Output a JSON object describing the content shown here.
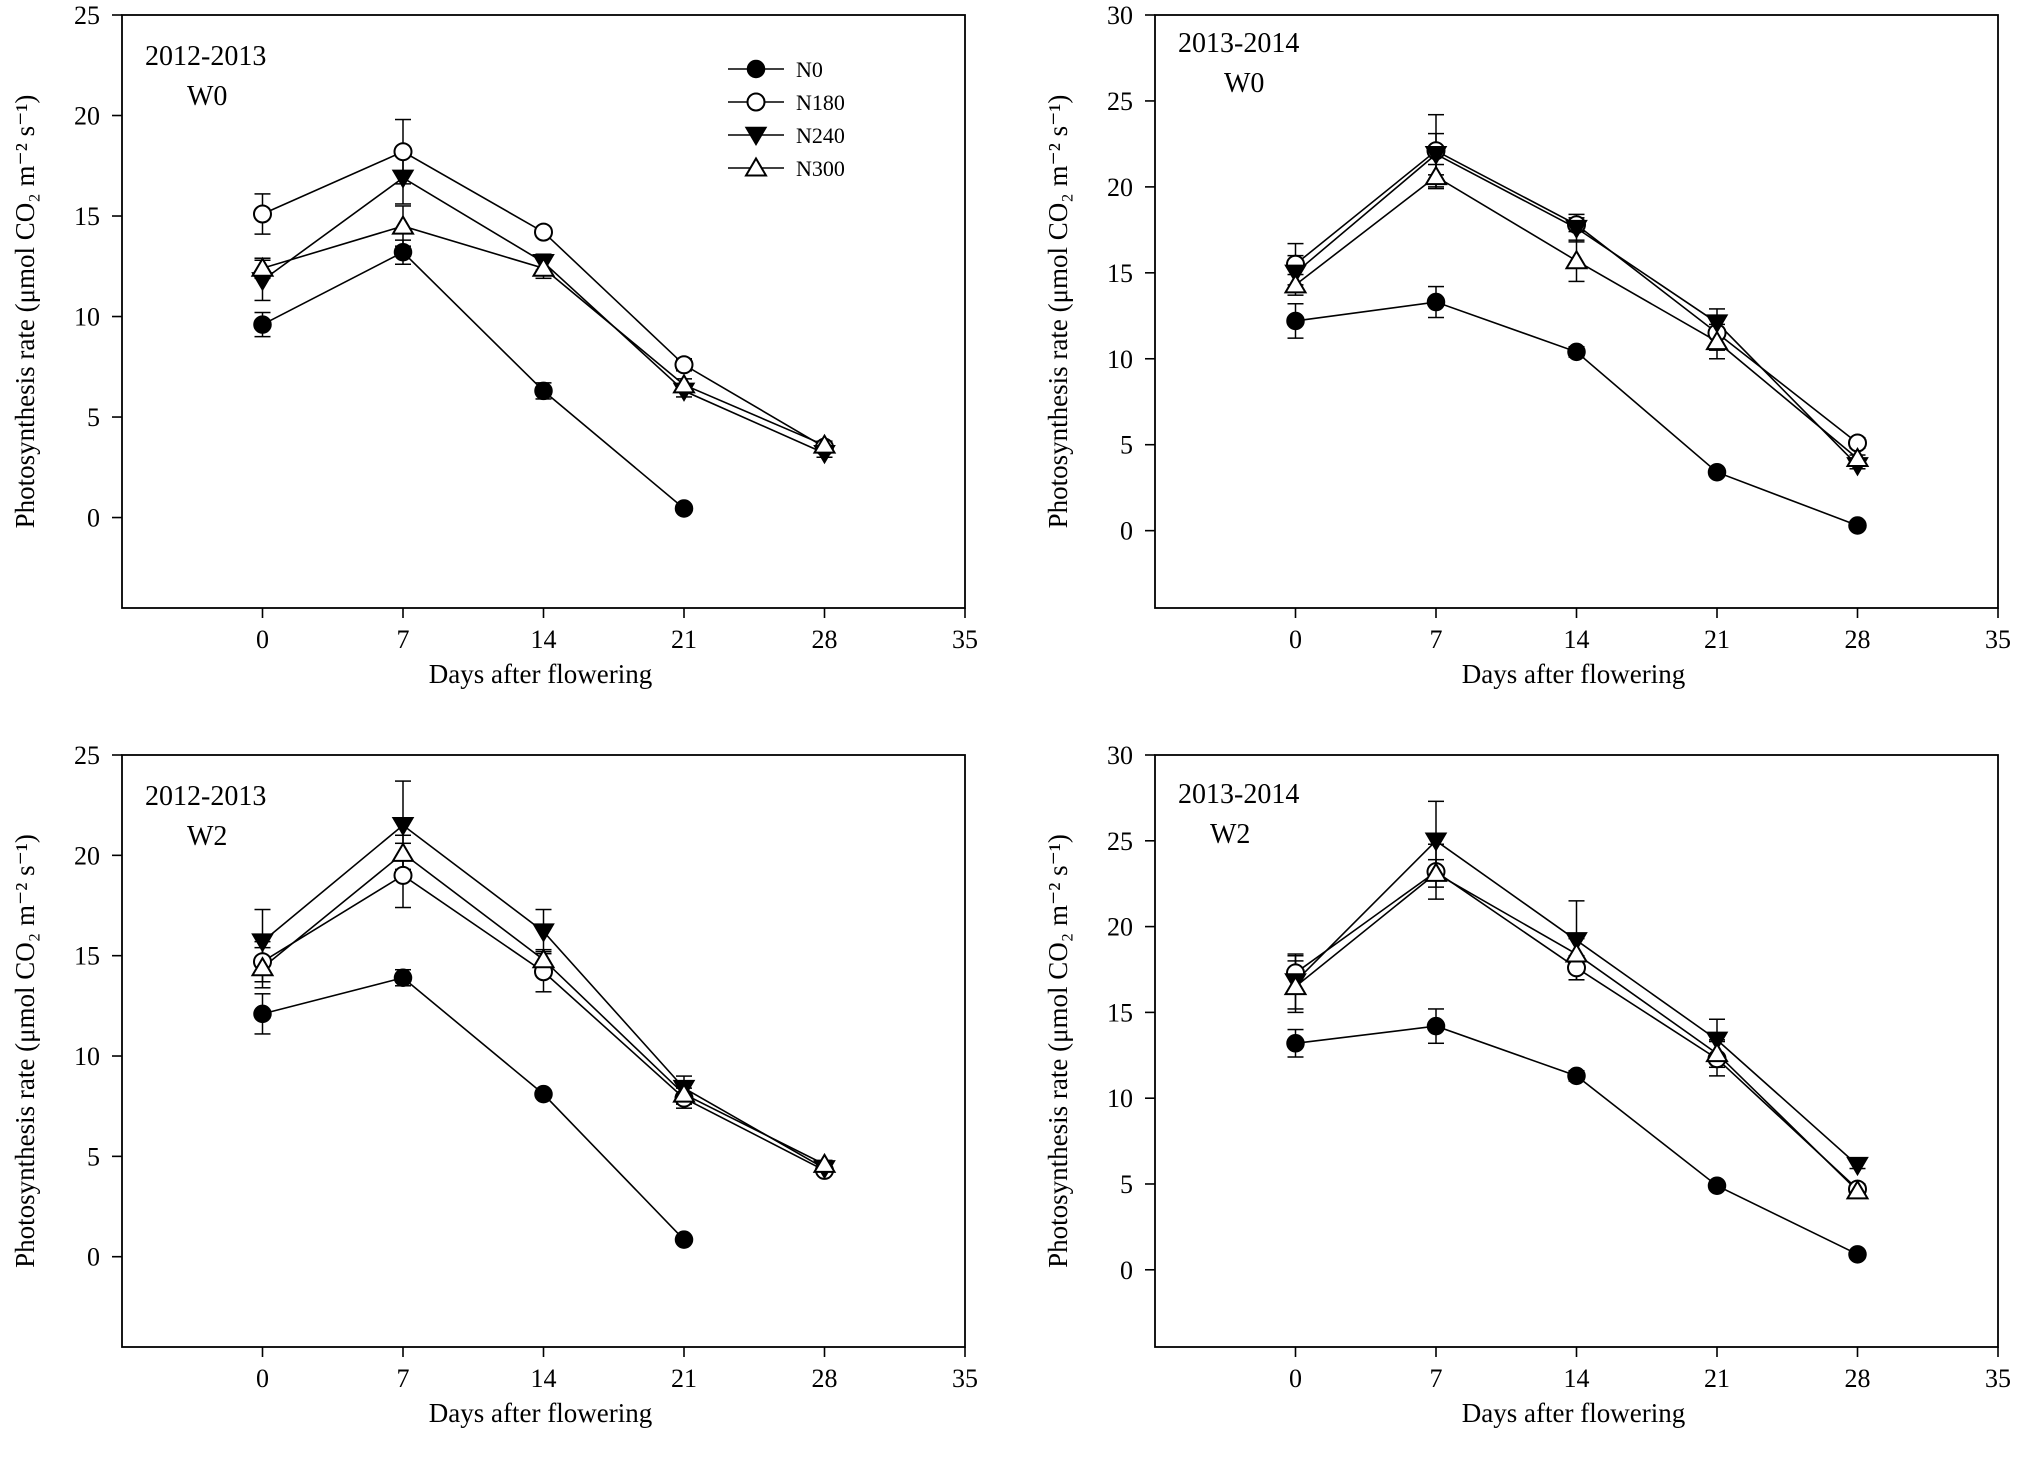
{
  "chart_data": [
    {
      "type": "line",
      "annotation": [
        "2012-2013",
        "W0"
      ],
      "xlabel": "Days after flowering",
      "ylabel": "Photosynthesis rate (μmol CO₂ m⁻² s⁻¹)",
      "ylim": [
        -4.5,
        25
      ],
      "xlim": [
        -7,
        35
      ],
      "yticks": [
        0,
        5,
        10,
        15,
        20,
        25
      ],
      "xticks": [
        0,
        7,
        14,
        21,
        28,
        35
      ],
      "legend_shown": true,
      "legend_position": "top-right",
      "series": [
        {
          "name": "N0",
          "marker": "filled-circle",
          "x": [
            0,
            7,
            14,
            21
          ],
          "values": [
            9.6,
            13.2,
            6.3,
            0.45
          ],
          "err": [
            0.6,
            0.6,
            0.4,
            0
          ]
        },
        {
          "name": "N180",
          "marker": "open-circle",
          "x": [
            0,
            7,
            14,
            21,
            28
          ],
          "values": [
            15.1,
            18.2,
            14.2,
            7.6,
            3.5
          ],
          "err": [
            1.0,
            1.6,
            0.2,
            0.3,
            0.2
          ]
        },
        {
          "name": "N240",
          "marker": "filled-triangle-down",
          "x": [
            0,
            7,
            14,
            21,
            28
          ],
          "values": [
            11.8,
            16.9,
            12.7,
            6.3,
            3.2
          ],
          "err": [
            1.0,
            1.3,
            0.4,
            0.3,
            0.2
          ]
        },
        {
          "name": "N300",
          "marker": "open-triangle-up",
          "x": [
            0,
            7,
            14,
            21,
            28
          ],
          "values": [
            12.4,
            14.5,
            12.4,
            6.6,
            3.6
          ],
          "err": [
            0.5,
            1.0,
            0.5,
            0.3,
            0.2
          ]
        }
      ]
    },
    {
      "type": "line",
      "annotation": [
        "2013-2014",
        "W0"
      ],
      "xlabel": "Days after flowering",
      "ylabel": "Photosynthesis rate (μmol CO₂ m⁻² s⁻¹)",
      "ylim": [
        -4.5,
        30
      ],
      "xlim": [
        -7,
        35
      ],
      "yticks": [
        0,
        5,
        10,
        15,
        20,
        25,
        30
      ],
      "xticks": [
        0,
        7,
        14,
        21,
        28,
        35
      ],
      "legend_shown": false,
      "series": [
        {
          "name": "N0",
          "marker": "filled-circle",
          "x": [
            0,
            7,
            14,
            21,
            28
          ],
          "values": [
            12.2,
            13.3,
            10.4,
            3.4,
            0.3
          ],
          "err": [
            1.0,
            0.9,
            0.3,
            0.2,
            0.1
          ]
        },
        {
          "name": "N180",
          "marker": "open-circle",
          "x": [
            0,
            7,
            14,
            21,
            28
          ],
          "values": [
            15.5,
            22.1,
            17.8,
            11.5,
            5.1
          ],
          "err": [
            1.2,
            2.1,
            0.4,
            1.0,
            0.3
          ]
        },
        {
          "name": "N240",
          "marker": "filled-triangle-down",
          "x": [
            0,
            7,
            14,
            21,
            28
          ],
          "values": [
            15.0,
            21.9,
            17.6,
            12.1,
            3.8
          ],
          "err": [
            1.0,
            1.2,
            0.8,
            0.8,
            0.2
          ]
        },
        {
          "name": "N300",
          "marker": "open-triangle-up",
          "x": [
            0,
            7,
            14,
            21,
            28
          ],
          "values": [
            14.3,
            20.6,
            15.7,
            11.0,
            4.2
          ],
          "err": [
            0.6,
            0.7,
            1.2,
            1.0,
            0.2
          ]
        }
      ]
    },
    {
      "type": "line",
      "annotation": [
        "2012-2013",
        "W2"
      ],
      "xlabel": "Days after flowering",
      "ylabel": "Photosynthesis rate (μmol CO₂ m⁻² s⁻¹)",
      "ylim": [
        -4.5,
        25
      ],
      "xlim": [
        -7,
        35
      ],
      "yticks": [
        0,
        5,
        10,
        15,
        20,
        25
      ],
      "xticks": [
        0,
        7,
        14,
        21,
        28,
        35
      ],
      "legend_shown": false,
      "series": [
        {
          "name": "N0",
          "marker": "filled-circle",
          "x": [
            0,
            7,
            14,
            21
          ],
          "values": [
            12.1,
            13.9,
            8.1,
            0.85
          ],
          "err": [
            1.0,
            0.4,
            0.2,
            0
          ]
        },
        {
          "name": "N180",
          "marker": "open-circle",
          "x": [
            0,
            7,
            14,
            21,
            28
          ],
          "values": [
            14.7,
            19.0,
            14.2,
            7.9,
            4.3
          ],
          "err": [
            1.0,
            1.6,
            1.0,
            0.5,
            0.2
          ]
        },
        {
          "name": "N240",
          "marker": "filled-triangle-down",
          "x": [
            0,
            7,
            14,
            21,
            28
          ],
          "values": [
            15.7,
            21.5,
            16.2,
            8.4,
            4.4
          ],
          "err": [
            1.6,
            2.2,
            1.1,
            0.6,
            0.2
          ]
        },
        {
          "name": "N300",
          "marker": "open-triangle-up",
          "x": [
            0,
            7,
            14,
            21,
            28
          ],
          "values": [
            14.4,
            20.1,
            14.8,
            8.1,
            4.6
          ],
          "err": [
            1.0,
            0.9,
            0.5,
            0.5,
            0.2
          ]
        }
      ]
    },
    {
      "type": "line",
      "annotation": [
        "2013-2014",
        "W2"
      ],
      "xlabel": "Days after flowering",
      "ylabel": "Photosynthesis rate (μmol CO₂ m⁻² s⁻¹)",
      "ylim": [
        -4.5,
        30
      ],
      "xlim": [
        -7,
        35
      ],
      "yticks": [
        0,
        5,
        10,
        15,
        20,
        25,
        30
      ],
      "xticks": [
        0,
        7,
        14,
        21,
        28,
        35
      ],
      "legend_shown": false,
      "series": [
        {
          "name": "N0",
          "marker": "filled-circle",
          "x": [
            0,
            7,
            14,
            21,
            28
          ],
          "values": [
            13.2,
            14.2,
            11.3,
            4.9,
            0.9
          ],
          "err": [
            0.8,
            1.0,
            0.3,
            0.2,
            0.1
          ]
        },
        {
          "name": "N180",
          "marker": "open-circle",
          "x": [
            0,
            7,
            14,
            21,
            28
          ],
          "values": [
            17.3,
            23.2,
            17.6,
            12.3,
            4.7
          ],
          "err": [
            1.0,
            1.6,
            0.7,
            1.0,
            0.3
          ]
        },
        {
          "name": "N240",
          "marker": "filled-triangle-down",
          "x": [
            0,
            7,
            14,
            21,
            28
          ],
          "values": [
            16.8,
            25.0,
            19.2,
            13.4,
            6.1
          ],
          "err": [
            1.6,
            2.3,
            2.3,
            1.2,
            0.2
          ]
        },
        {
          "name": "N300",
          "marker": "open-triangle-up",
          "x": [
            0,
            7,
            14,
            21,
            28
          ],
          "values": [
            16.5,
            23.1,
            18.4,
            12.6,
            4.6
          ],
          "err": [
            1.5,
            0.8,
            0.9,
            0.8,
            0.3
          ]
        }
      ]
    }
  ]
}
